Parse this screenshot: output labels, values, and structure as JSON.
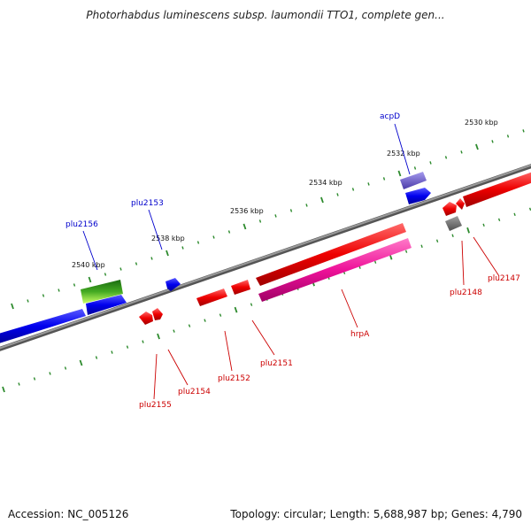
{
  "header": {
    "title": "Photorhabdus luminescens subsp. laumondii TTO1, complete gen..."
  },
  "footer": {
    "accession": "Accession: NC_005126",
    "topology": "Topology: circular; Length: 5,688,987 bp; Genes: 4,790"
  },
  "map": {
    "backbone_color": "#808080",
    "tick_color": "#2e8b2e",
    "tick_labels": [
      {
        "text": "2530 kbp"
      },
      {
        "text": "2532 kbp"
      },
      {
        "text": "2534 kbp"
      },
      {
        "text": "2536 kbp"
      },
      {
        "text": "2538 kbp"
      },
      {
        "text": "2540 kbp"
      }
    ],
    "gene_labels": [
      {
        "text": "acpD",
        "color": "#0000cc"
      },
      {
        "text": "plu2153",
        "color": "#0000cc"
      },
      {
        "text": "plu2156",
        "color": "#0000cc"
      },
      {
        "text": "plu2147",
        "color": "#cc0000"
      },
      {
        "text": "plu2148",
        "color": "#cc0000"
      },
      {
        "text": "hrpA",
        "color": "#cc0000"
      },
      {
        "text": "plu2151",
        "color": "#cc0000"
      },
      {
        "text": "plu2152",
        "color": "#cc0000"
      },
      {
        "text": "plu2154",
        "color": "#cc0000"
      },
      {
        "text": "plu2155",
        "color": "#cc0000"
      }
    ],
    "feature_colors": {
      "forward_cds": "#0000ee",
      "reverse_cds": "#ee0000",
      "rna": "#ee1199",
      "other": "#707070",
      "acpD_feature": "#6655cc",
      "green_feature": "#44aa22"
    }
  }
}
